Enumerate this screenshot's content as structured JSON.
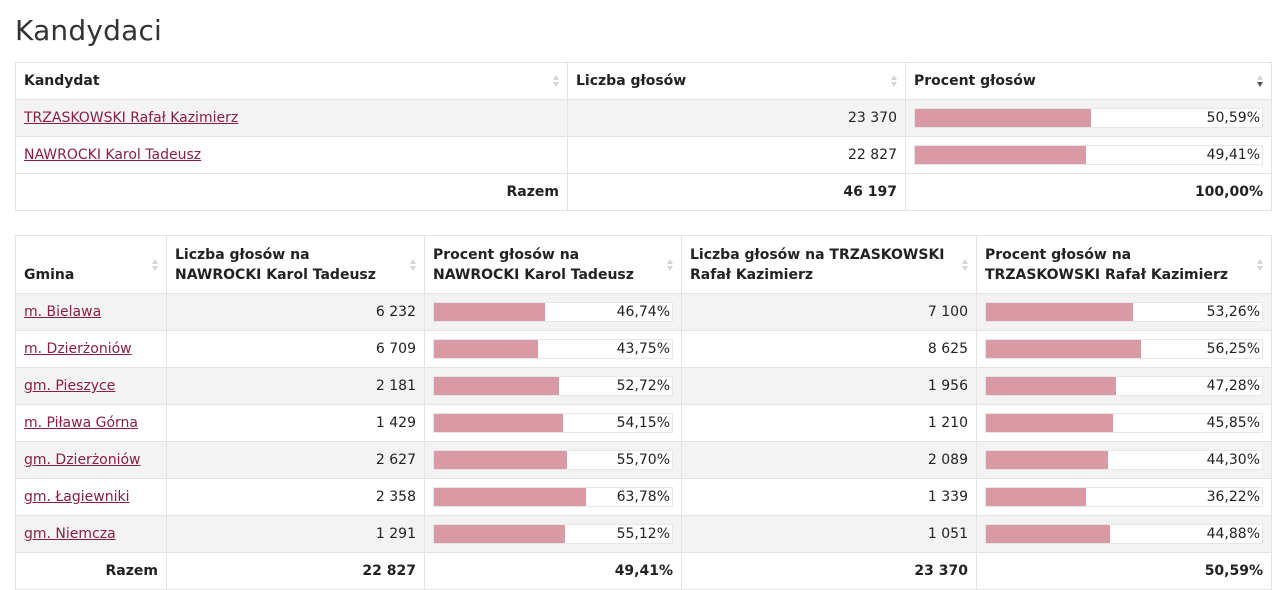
{
  "page_title": "Kandydaci",
  "colors": {
    "bar_fill": "#d99aa6",
    "link": "#8b1e3f",
    "row_alt": "#f3f3f3"
  },
  "candidates_table": {
    "headers": [
      "Kandydat",
      "Liczba głosów",
      "Procent głosów"
    ],
    "sort_column": "Procent głosów",
    "sort_direction": "desc",
    "rows": [
      {
        "name": "TRZASKOWSKI Rafał Kazimierz",
        "votes": "23 370",
        "percent": "50,59%",
        "percent_value": 50.59
      },
      {
        "name": "NAWROCKI Karol Tadeusz",
        "votes": "22 827",
        "percent": "49,41%",
        "percent_value": 49.41
      }
    ],
    "total": {
      "label": "Razem",
      "votes": "46 197",
      "percent": "100,00%"
    }
  },
  "gminy_table": {
    "headers": [
      "Gmina",
      "Liczba głosów na NAWROCKI Karol Tadeusz",
      "Procent głosów na NAWROCKI Karol Tadeusz",
      "Liczba głosów na TRZASKOWSKI Rafał Kazimierz",
      "Procent głosów na TRZASKOWSKI Rafał Kazimierz"
    ],
    "rows": [
      {
        "gmina": "m. Bielawa",
        "n_votes": "6 232",
        "n_pct": "46,74%",
        "n_pct_value": 46.74,
        "t_votes": "7 100",
        "t_pct": "53,26%",
        "t_pct_value": 53.26
      },
      {
        "gmina": "m. Dzierżoniów",
        "n_votes": "6 709",
        "n_pct": "43,75%",
        "n_pct_value": 43.75,
        "t_votes": "8 625",
        "t_pct": "56,25%",
        "t_pct_value": 56.25
      },
      {
        "gmina": "gm. Pieszyce",
        "n_votes": "2 181",
        "n_pct": "52,72%",
        "n_pct_value": 52.72,
        "t_votes": "1 956",
        "t_pct": "47,28%",
        "t_pct_value": 47.28
      },
      {
        "gmina": "m. Piława Górna",
        "n_votes": "1 429",
        "n_pct": "54,15%",
        "n_pct_value": 54.15,
        "t_votes": "1 210",
        "t_pct": "45,85%",
        "t_pct_value": 45.85
      },
      {
        "gmina": "gm. Dzierżoniów",
        "n_votes": "2 627",
        "n_pct": "55,70%",
        "n_pct_value": 55.7,
        "t_votes": "2 089",
        "t_pct": "44,30%",
        "t_pct_value": 44.3
      },
      {
        "gmina": "gm. Łagiewniki",
        "n_votes": "2 358",
        "n_pct": "63,78%",
        "n_pct_value": 63.78,
        "t_votes": "1 339",
        "t_pct": "36,22%",
        "t_pct_value": 36.22
      },
      {
        "gmina": "gm. Niemcza",
        "n_votes": "1 291",
        "n_pct": "55,12%",
        "n_pct_value": 55.12,
        "t_votes": "1 051",
        "t_pct": "44,88%",
        "t_pct_value": 44.88
      }
    ],
    "total": {
      "label": "Razem",
      "n_votes": "22 827",
      "n_pct": "49,41%",
      "t_votes": "23 370",
      "t_pct": "50,59%"
    }
  }
}
